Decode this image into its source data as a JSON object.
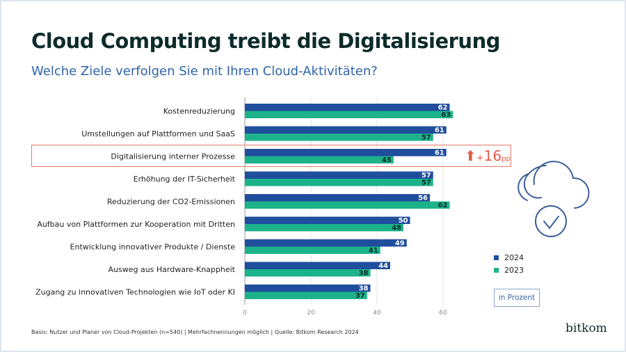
{
  "title": "Cloud Computing treibt die Digitalisierung",
  "subtitle": "Welche Ziele verfolgen Sie mit Ihren Cloud-Aktivitäten?",
  "highlight": {
    "arrow": "⬆",
    "sign": "+",
    "value": "16",
    "unit": "pp"
  },
  "unit_label": "in Prozent",
  "footnote": "Basis: Nutzer und Planer von Cloud-Projekten (n=540) | Mehrfachnennungen möglich | Quelle: Bitkom Research 2024",
  "logo": "bitkom",
  "icon": "cloud-check-icon",
  "chart_data": {
    "type": "bar",
    "orientation": "horizontal",
    "categories": [
      "Kostenreduzierung",
      "Umstellungen auf Plattformen und SaaS",
      "Digitalisierung interner Prozesse",
      "Erhöhung der IT-Sicherheit",
      "Reduzierung der CO2-Emissionen",
      "Aufbau von Plattformen zur Kooperation mit Dritten",
      "Entwicklung innovativer Produkte / Dienste",
      "Ausweg aus Hardware-Knappheit",
      "Zugang zu innovativen Technologien wie IoT oder KI"
    ],
    "series": [
      {
        "name": "2024",
        "color": "#1f4e9c",
        "values": [
          62,
          61,
          61,
          57,
          56,
          50,
          49,
          44,
          38
        ]
      },
      {
        "name": "2023",
        "color": "#1db38a",
        "values": [
          63,
          57,
          45,
          57,
          62,
          48,
          41,
          38,
          37
        ]
      }
    ],
    "xticks": [
      0,
      20,
      40,
      60
    ],
    "xlim": [
      0,
      70
    ],
    "grid": true,
    "legend": "right",
    "highlighted_category": "Digitalisierung interner Prozesse"
  }
}
